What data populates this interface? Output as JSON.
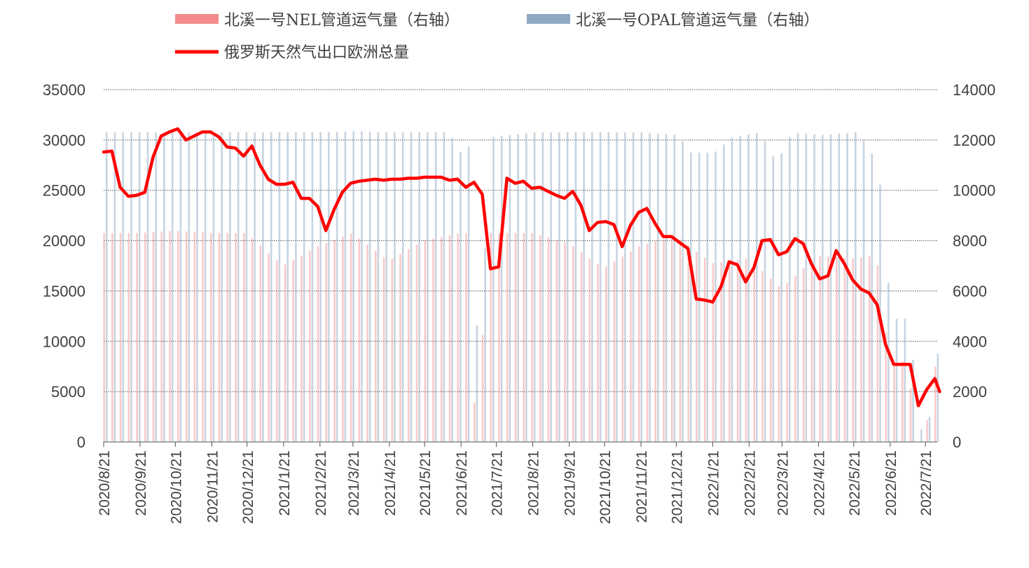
{
  "chart_data": {
    "type": "bar+line",
    "legend": [
      {
        "name": "北溪一号NEL管道运气量（右轴）",
        "color": "#f48a8a",
        "kind": "bar"
      },
      {
        "name": "北溪一号OPAL管道运气量（右轴）",
        "color": "#8fa9c4",
        "kind": "bar"
      },
      {
        "name": "俄罗斯天然气出口欧洲总量",
        "color": "#ff0000",
        "kind": "line"
      }
    ],
    "left_axis": {
      "min": 0,
      "max": 35000,
      "ticks": [
        "0",
        "5000",
        "10000",
        "15000",
        "20000",
        "25000",
        "30000",
        "35000"
      ]
    },
    "right_axis": {
      "min": 0,
      "max": 14000,
      "ticks": [
        "0",
        "2000",
        "4000",
        "6000",
        "8000",
        "10000",
        "12000",
        "14000"
      ]
    },
    "x_ticks": [
      "2020/8/21",
      "2020/9/21",
      "2020/10/21",
      "2020/11/21",
      "2020/12/21",
      "2021/1/21",
      "2021/2/21",
      "2021/3/21",
      "2021/4/21",
      "2021/5/21",
      "2021/6/21",
      "2021/7/21",
      "2021/8/21",
      "2021/9/21",
      "2021/10/21",
      "2021/11/21",
      "2021/12/21",
      "2022/1/21",
      "2022/2/21",
      "2022/3/21",
      "2022/4/21",
      "2022/5/21",
      "2022/6/21",
      "2022/7/21"
    ],
    "x_start": "2020-08-21",
    "x_end": "2022-07-31",
    "grid": true,
    "legend_position": "top",
    "nel_series": [
      [
        "2020-08-21",
        8300
      ],
      [
        "2020-09-21",
        8300
      ],
      [
        "2020-10-21",
        8400
      ],
      [
        "2020-11-21",
        8300
      ],
      [
        "2020-12-21",
        8300
      ],
      [
        "2021-01-21",
        7000
      ],
      [
        "2021-02-21",
        7800
      ],
      [
        "2021-03-21",
        8300
      ],
      [
        "2021-04-21",
        7200
      ],
      [
        "2021-05-21",
        8000
      ],
      [
        "2021-06-21",
        8300
      ],
      [
        "2021-06-28",
        8300
      ],
      [
        "2021-07-04",
        200
      ],
      [
        "2021-07-08",
        200
      ],
      [
        "2021-07-12",
        8300
      ],
      [
        "2021-08-21",
        8300
      ],
      [
        "2021-09-21",
        7900
      ],
      [
        "2021-10-21",
        6900
      ],
      [
        "2021-11-21",
        7800
      ],
      [
        "2021-12-21",
        8200
      ],
      [
        "2022-01-21",
        7100
      ],
      [
        "2022-02-21",
        7300
      ],
      [
        "2022-03-21",
        6100
      ],
      [
        "2022-04-21",
        7400
      ],
      [
        "2022-05-21",
        7300
      ],
      [
        "2022-06-10",
        7400
      ],
      [
        "2022-06-21",
        3200
      ],
      [
        "2022-07-08",
        3200
      ],
      [
        "2022-07-11",
        0
      ],
      [
        "2022-07-21",
        0
      ],
      [
        "2022-07-28",
        3000
      ]
    ],
    "opal_series": [
      [
        "2020-08-21",
        12300
      ],
      [
        "2020-09-21",
        12300
      ],
      [
        "2020-10-21",
        12300
      ],
      [
        "2020-11-21",
        12300
      ],
      [
        "2020-12-21",
        12300
      ],
      [
        "2021-01-21",
        12300
      ],
      [
        "2021-02-21",
        12300
      ],
      [
        "2021-03-21",
        12350
      ],
      [
        "2021-04-21",
        12300
      ],
      [
        "2021-05-21",
        12300
      ],
      [
        "2021-06-11",
        12300
      ],
      [
        "2021-06-15",
        11400
      ],
      [
        "2021-06-28",
        11800
      ],
      [
        "2021-07-04",
        3200
      ],
      [
        "2021-07-08",
        3300
      ],
      [
        "2021-07-12",
        12100
      ],
      [
        "2021-08-21",
        12300
      ],
      [
        "2021-09-21",
        12300
      ],
      [
        "2021-10-21",
        12300
      ],
      [
        "2021-11-21",
        12300
      ],
      [
        "2021-12-21",
        12200
      ],
      [
        "2022-01-01",
        11500
      ],
      [
        "2022-01-21",
        11500
      ],
      [
        "2022-02-05",
        12100
      ],
      [
        "2022-03-01",
        12300
      ],
      [
        "2022-03-15",
        11100
      ],
      [
        "2022-03-28",
        12300
      ],
      [
        "2022-04-21",
        12200
      ],
      [
        "2022-05-21",
        12300
      ],
      [
        "2022-06-01",
        11800
      ],
      [
        "2022-06-10",
        10800
      ],
      [
        "2022-06-17",
        6800
      ],
      [
        "2022-06-21",
        4900
      ],
      [
        "2022-07-08",
        4900
      ],
      [
        "2022-07-11",
        0
      ],
      [
        "2022-07-18",
        700
      ],
      [
        "2022-07-21",
        0
      ],
      [
        "2022-07-28",
        3500
      ]
    ],
    "line_series": [
      [
        "2020-08-21",
        28800
      ],
      [
        "2020-08-28",
        28900
      ],
      [
        "2020-09-04",
        25300
      ],
      [
        "2020-09-11",
        24400
      ],
      [
        "2020-09-18",
        24500
      ],
      [
        "2020-09-25",
        24800
      ],
      [
        "2020-10-02",
        28300
      ],
      [
        "2020-10-09",
        30400
      ],
      [
        "2020-10-16",
        30800
      ],
      [
        "2020-10-23",
        31100
      ],
      [
        "2020-10-30",
        30000
      ],
      [
        "2020-11-06",
        30400
      ],
      [
        "2020-11-13",
        30800
      ],
      [
        "2020-11-20",
        30800
      ],
      [
        "2020-11-27",
        30300
      ],
      [
        "2020-12-04",
        29300
      ],
      [
        "2020-12-11",
        29200
      ],
      [
        "2020-12-18",
        28400
      ],
      [
        "2020-12-25",
        29400
      ],
      [
        "2021-01-01",
        27500
      ],
      [
        "2021-01-08",
        26100
      ],
      [
        "2021-01-15",
        25600
      ],
      [
        "2021-01-22",
        25600
      ],
      [
        "2021-01-29",
        25800
      ],
      [
        "2021-02-05",
        24200
      ],
      [
        "2021-02-12",
        24200
      ],
      [
        "2021-02-19",
        23400
      ],
      [
        "2021-02-26",
        21000
      ],
      [
        "2021-03-05",
        23100
      ],
      [
        "2021-03-12",
        24800
      ],
      [
        "2021-03-19",
        25700
      ],
      [
        "2021-03-26",
        25900
      ],
      [
        "2021-04-02",
        26000
      ],
      [
        "2021-04-09",
        26100
      ],
      [
        "2021-04-16",
        26000
      ],
      [
        "2021-04-23",
        26100
      ],
      [
        "2021-04-30",
        26100
      ],
      [
        "2021-05-07",
        26200
      ],
      [
        "2021-05-14",
        26200
      ],
      [
        "2021-05-21",
        26300
      ],
      [
        "2021-05-28",
        26300
      ],
      [
        "2021-06-04",
        26300
      ],
      [
        "2021-06-11",
        26000
      ],
      [
        "2021-06-18",
        26100
      ],
      [
        "2021-06-25",
        25300
      ],
      [
        "2021-07-02",
        25800
      ],
      [
        "2021-07-09",
        24600
      ],
      [
        "2021-07-16",
        17200
      ],
      [
        "2021-07-23",
        17400
      ],
      [
        "2021-07-30",
        26200
      ],
      [
        "2021-08-06",
        25700
      ],
      [
        "2021-08-13",
        25900
      ],
      [
        "2021-08-20",
        25200
      ],
      [
        "2021-08-27",
        25300
      ],
      [
        "2021-09-03",
        24900
      ],
      [
        "2021-09-10",
        24500
      ],
      [
        "2021-09-17",
        24200
      ],
      [
        "2021-09-24",
        24900
      ],
      [
        "2021-10-01",
        23500
      ],
      [
        "2021-10-08",
        21000
      ],
      [
        "2021-10-15",
        21800
      ],
      [
        "2021-10-22",
        21900
      ],
      [
        "2021-10-29",
        21600
      ],
      [
        "2021-11-05",
        19400
      ],
      [
        "2021-11-12",
        21500
      ],
      [
        "2021-11-19",
        22800
      ],
      [
        "2021-11-26",
        23200
      ],
      [
        "2021-12-03",
        21700
      ],
      [
        "2021-12-10",
        20400
      ],
      [
        "2021-12-17",
        20400
      ],
      [
        "2021-12-24",
        19800
      ],
      [
        "2021-12-31",
        19200
      ],
      [
        "2022-01-07",
        14200
      ],
      [
        "2022-01-14",
        14100
      ],
      [
        "2022-01-21",
        13900
      ],
      [
        "2022-01-28",
        15400
      ],
      [
        "2022-02-04",
        17900
      ],
      [
        "2022-02-11",
        17600
      ],
      [
        "2022-02-18",
        15900
      ],
      [
        "2022-02-25",
        17300
      ],
      [
        "2022-03-04",
        20000
      ],
      [
        "2022-03-11",
        20100
      ],
      [
        "2022-03-18",
        18600
      ],
      [
        "2022-03-25",
        18900
      ],
      [
        "2022-04-01",
        20200
      ],
      [
        "2022-04-08",
        19700
      ],
      [
        "2022-04-15",
        17700
      ],
      [
        "2022-04-22",
        16200
      ],
      [
        "2022-04-29",
        16500
      ],
      [
        "2022-05-06",
        19000
      ],
      [
        "2022-05-13",
        17700
      ],
      [
        "2022-05-20",
        16100
      ],
      [
        "2022-05-27",
        15200
      ],
      [
        "2022-06-03",
        14800
      ],
      [
        "2022-06-10",
        13600
      ],
      [
        "2022-06-17",
        9700
      ],
      [
        "2022-06-24",
        7700
      ],
      [
        "2022-07-01",
        7700
      ],
      [
        "2022-07-08",
        7700
      ],
      [
        "2022-07-15",
        3600
      ],
      [
        "2022-07-22",
        5200
      ],
      [
        "2022-07-29",
        6300
      ],
      [
        "2022-08-02",
        5000
      ]
    ]
  }
}
